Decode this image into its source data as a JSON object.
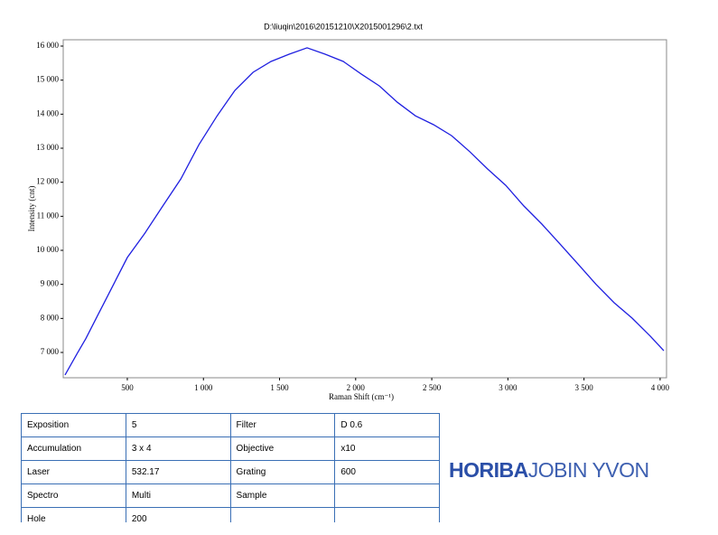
{
  "chart_data": {
    "type": "line",
    "title": "D:\\liuqin\\2016\\20151210\\X2015001296\\2.txt",
    "x_label": "Raman Shift (cm⁻¹)",
    "y_label": "Intensity (cnt)",
    "color": "#1f1fe0",
    "x": [
      91,
      168,
      227,
      302,
      500,
      615,
      733,
      852,
      970,
      1090,
      1207,
      1326,
      1444,
      1563,
      1681,
      1800,
      1919,
      2037,
      2156,
      2274,
      2393,
      2512,
      2630,
      2749,
      2867,
      2986,
      3105,
      3223,
      3342,
      3460,
      3579,
      3698,
      3816,
      3935,
      4024
    ],
    "values": [
      6340,
      6950,
      7400,
      8060,
      9790,
      10500,
      11300,
      12100,
      13100,
      13950,
      14700,
      15230,
      15550,
      15760,
      15950,
      15760,
      15550,
      15180,
      14830,
      14350,
      13950,
      13690,
      13370,
      12900,
      12390,
      11910,
      11300,
      10770,
      10190,
      9600,
      9000,
      8460,
      8010,
      7480,
      7050
    ],
    "xlim": [
      79,
      4042
    ],
    "ylim": [
      6257,
      16186
    ],
    "xticks": [
      500,
      {
        "value": 1000,
        "label": "1 000"
      },
      {
        "value": 1500,
        "label": "1 500"
      },
      {
        "value": 2000,
        "label": "2 000"
      },
      {
        "value": 2500,
        "label": "2 500"
      },
      {
        "value": 3000,
        "label": "3 000"
      },
      {
        "value": 3500,
        "label": "3 500"
      },
      {
        "value": 4000,
        "label": "4 000"
      }
    ],
    "yticks": [
      {
        "value": 7000,
        "label": "7 000"
      },
      {
        "value": 8000,
        "label": "8 000"
      },
      {
        "value": 9000,
        "label": "9 000"
      },
      {
        "value": 10000,
        "label": "10 000"
      },
      {
        "value": 11000,
        "label": "11 000"
      },
      {
        "value": 12000,
        "label": "12 000"
      },
      {
        "value": 13000,
        "label": "13 000"
      },
      {
        "value": 14000,
        "label": "14 000"
      },
      {
        "value": 15000,
        "label": "15 000"
      },
      {
        "value": 16000,
        "label": "16 000"
      }
    ]
  },
  "table": {
    "rows": [
      [
        "Exposition",
        "5",
        "Filter",
        "D 0.6"
      ],
      [
        "Accumulation",
        "3 x 4",
        "Objective",
        "x10"
      ],
      [
        "Laser",
        "532.17",
        "Grating",
        "600"
      ],
      [
        "Spectro",
        "Multi",
        "Sample",
        null
      ],
      [
        "Hole",
        "200",
        null,
        null
      ]
    ]
  },
  "logo": {
    "brand": "HORIBA",
    "sub": "JOBIN YVON"
  }
}
